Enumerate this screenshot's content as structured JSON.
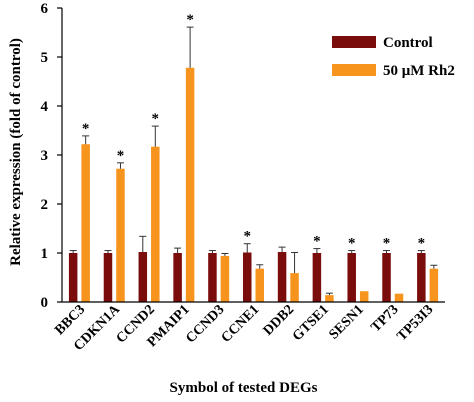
{
  "chart_data": {
    "type": "bar",
    "xlabel": "Symbol of tested DEGs",
    "ylabel": "Relative expression (fold of control)",
    "ylim": [
      0,
      6
    ],
    "yticks": [
      "0",
      "1",
      "2",
      "3",
      "4",
      "5",
      "6"
    ],
    "legend_position": "top-right",
    "categories": [
      "BBC3",
      "CDKN1A",
      "CCND2",
      "PMAIP1",
      "CCND3",
      "CCNE1",
      "DDB2",
      "GTSE1",
      "SESN1",
      "TP73",
      "TP53I3"
    ],
    "series": [
      {
        "name": "Control",
        "color": "#7b0c0c",
        "values": [
          1.0,
          1.0,
          1.02,
          1.0,
          1.0,
          1.01,
          1.02,
          1.0,
          1.0,
          1.0,
          1.0
        ],
        "errors": [
          0.05,
          0.05,
          0.32,
          0.1,
          0.05,
          0.18,
          0.1,
          0.09,
          0.05,
          0.05,
          0.05
        ]
      },
      {
        "name": "50 μM Rh2",
        "color": "#f7941d",
        "values": [
          3.22,
          2.72,
          3.17,
          4.78,
          0.94,
          0.68,
          0.59,
          0.14,
          0.22,
          0.17,
          0.68
        ],
        "errors": [
          0.17,
          0.12,
          0.42,
          0.83,
          0.05,
          0.08,
          0.42,
          0.04,
          0.0,
          0.0,
          0.07
        ]
      }
    ],
    "significance": [
      {
        "category": "BBC3",
        "series": "50 μM Rh2",
        "mark": "*"
      },
      {
        "category": "CDKN1A",
        "series": "50 μM Rh2",
        "mark": "*"
      },
      {
        "category": "CCND2",
        "series": "50 μM Rh2",
        "mark": "*"
      },
      {
        "category": "PMAIP1",
        "series": "50 μM Rh2",
        "mark": "*"
      },
      {
        "category": "CCNE1",
        "series": "Control",
        "mark": "*"
      },
      {
        "category": "GTSE1",
        "series": "Control",
        "mark": "*"
      },
      {
        "category": "SESN1",
        "series": "Control",
        "mark": "*"
      },
      {
        "category": "TP73",
        "series": "Control",
        "mark": "*"
      },
      {
        "category": "TP53I3",
        "series": "Control",
        "mark": "*"
      }
    ]
  }
}
